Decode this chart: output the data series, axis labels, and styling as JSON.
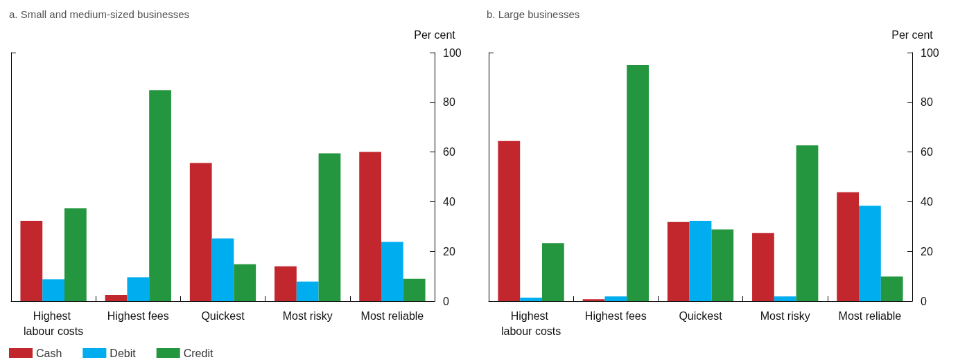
{
  "chart_data": [
    {
      "type": "bar",
      "title": "a. Small and medium-sized businesses",
      "ylabel": "Per cent",
      "categories": [
        "Highest labour costs",
        "Highest fees",
        "Quickest",
        "Most risky",
        "Most reliable"
      ],
      "series": [
        {
          "name": "Cash",
          "color": "#c1272d",
          "values": [
            32.3,
            2.5,
            55.6,
            14,
            60
          ]
        },
        {
          "name": "Debit",
          "color": "#00aeef",
          "values": [
            8.8,
            9.6,
            25.2,
            7.9,
            23.8
          ]
        },
        {
          "name": "Credit",
          "color": "#23963f",
          "values": [
            37.3,
            84.9,
            14.8,
            59.5,
            9
          ]
        }
      ],
      "ylim": [
        0,
        100
      ],
      "yticks": [
        0,
        20,
        40,
        60,
        80,
        100
      ],
      "grid": false,
      "legend": "bottom"
    },
    {
      "type": "bar",
      "title": "b. Large businesses",
      "ylabel": "Per cent",
      "categories": [
        "Highest labour costs",
        "Highest fees",
        "Quickest",
        "Most risky",
        "Most reliable"
      ],
      "series": [
        {
          "color": "#c1272d",
          "values": [
            64.4,
            0.8,
            31.8,
            27.4,
            43.8
          ]
        },
        {
          "color": "#00aeef",
          "values": [
            1.4,
            1.9,
            32.3,
            1.9,
            38.4
          ]
        },
        {
          "color": "#23963f",
          "values": [
            23.3,
            95,
            28.8,
            62.7,
            9.9
          ]
        }
      ],
      "ylim": [
        0,
        100
      ],
      "yticks": [
        0,
        20,
        40,
        60,
        80,
        100
      ],
      "grid": false,
      "legend": false
    }
  ]
}
